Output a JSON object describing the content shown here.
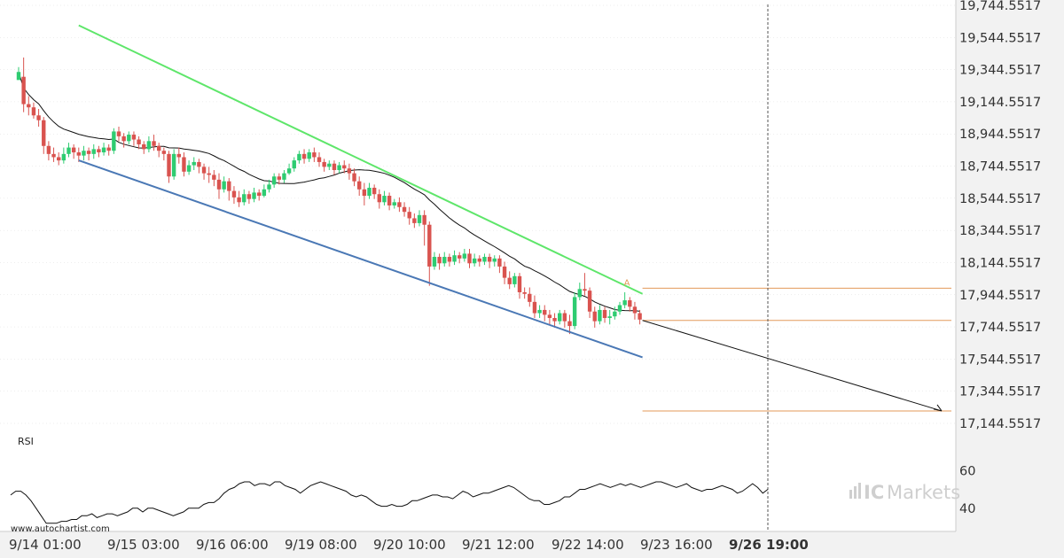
{
  "chart_data": {
    "type": "candlestick",
    "x_tick_labels": [
      "9/14 01:00",
      "9/15 03:00",
      "9/16 06:00",
      "9/19 08:00",
      "9/20 10:00",
      "9/21 12:00",
      "9/22 14:00",
      "9/23 16:00",
      "9/26 19:00"
    ],
    "y_tick_labels": [
      "19,744.5517",
      "19,544.5517",
      "19,344.5517",
      "19,144.5517",
      "18,944.5517",
      "18,744.5517",
      "18,544.5517",
      "18,344.5517",
      "18,144.5517",
      "17,944.5517",
      "17,744.5517",
      "17,544.5517",
      "17,344.5517",
      "17,144.5517"
    ],
    "y_ticks": [
      19744.5517,
      19544.5517,
      19344.5517,
      19144.5517,
      18944.5517,
      18744.5517,
      18544.5517,
      18344.5517,
      18144.5517,
      17944.5517,
      17744.5517,
      17544.5517,
      17344.5517,
      17144.5517
    ],
    "ylim": [
      17000,
      19744.5517
    ],
    "rsi": {
      "label": "RSI",
      "tick_labels": [
        "60",
        "40"
      ],
      "ticks": [
        60,
        40
      ],
      "ylim": [
        30,
        70
      ],
      "values": [
        47,
        49,
        49,
        47,
        44,
        40,
        36,
        32,
        32,
        32,
        33,
        33,
        34,
        34,
        36,
        36,
        37,
        35,
        36,
        37,
        37,
        36,
        37,
        38,
        40,
        40,
        38,
        40,
        40,
        39,
        38,
        37,
        36,
        37,
        38,
        40,
        40,
        40,
        42,
        43,
        43,
        45,
        48,
        50,
        51,
        53,
        54,
        54,
        52,
        53,
        53,
        52,
        54,
        54,
        52,
        51,
        50,
        48,
        50,
        52,
        53,
        54,
        53,
        52,
        51,
        50,
        49,
        47,
        46,
        47,
        46,
        44,
        42,
        41,
        41,
        42,
        41,
        41,
        42,
        44,
        44,
        45,
        46,
        47,
        47,
        46,
        46,
        45,
        47,
        49,
        48,
        46,
        47,
        48,
        48,
        49,
        50,
        51,
        52,
        51,
        49,
        47,
        45,
        44,
        44,
        42,
        42,
        43,
        44,
        46,
        46,
        48,
        50,
        50,
        51,
        52,
        53,
        52,
        51,
        52,
        53,
        52,
        53,
        52,
        51,
        52,
        53,
        54,
        54,
        53,
        52,
        51,
        52,
        53,
        51,
        50,
        49,
        50,
        50,
        51,
        52,
        51,
        50,
        48,
        49,
        51,
        53,
        51,
        48,
        50
      ]
    },
    "candles": [
      [
        19280,
        19330,
        19300,
        19360
      ],
      [
        19300,
        19130,
        19080,
        19420
      ],
      [
        19130,
        19110,
        19060,
        19180
      ],
      [
        19110,
        19060,
        19040,
        19140
      ],
      [
        19060,
        19030,
        18990,
        19100
      ],
      [
        19030,
        18870,
        18820,
        19050
      ],
      [
        18870,
        18820,
        18780,
        18900
      ],
      [
        18820,
        18800,
        18770,
        18860
      ],
      [
        18800,
        18780,
        18750,
        18830
      ],
      [
        18780,
        18820,
        18760,
        18860
      ],
      [
        18820,
        18860,
        18800,
        18890
      ],
      [
        18860,
        18830,
        18790,
        18880
      ],
      [
        18830,
        18810,
        18770,
        18860
      ],
      [
        18810,
        18840,
        18780,
        18870
      ],
      [
        18840,
        18820,
        18780,
        18860
      ],
      [
        18820,
        18850,
        18790,
        18880
      ],
      [
        18850,
        18830,
        18800,
        18870
      ],
      [
        18830,
        18860,
        18810,
        18890
      ],
      [
        18860,
        18840,
        18810,
        18880
      ],
      [
        18840,
        18960,
        18820,
        18980
      ],
      [
        18960,
        18930,
        18900,
        18990
      ],
      [
        18930,
        18900,
        18860,
        18950
      ],
      [
        18900,
        18940,
        18880,
        18960
      ],
      [
        18940,
        18910,
        18870,
        18960
      ],
      [
        18910,
        18880,
        18850,
        18930
      ],
      [
        18880,
        18850,
        18820,
        18900
      ],
      [
        18850,
        18900,
        18830,
        18930
      ],
      [
        18900,
        18870,
        18840,
        18940
      ],
      [
        18870,
        18840,
        18800,
        18890
      ],
      [
        18840,
        18820,
        18780,
        18860
      ],
      [
        18820,
        18680,
        18640,
        18840
      ],
      [
        18680,
        18820,
        18660,
        18850
      ],
      [
        18820,
        18800,
        18760,
        18860
      ],
      [
        18800,
        18710,
        18680,
        18830
      ],
      [
        18710,
        18750,
        18690,
        18780
      ],
      [
        18750,
        18770,
        18720,
        18800
      ],
      [
        18770,
        18740,
        18700,
        18790
      ],
      [
        18740,
        18700,
        18660,
        18760
      ],
      [
        18700,
        18690,
        18640,
        18740
      ],
      [
        18690,
        18660,
        18620,
        18720
      ],
      [
        18660,
        18600,
        18540,
        18700
      ],
      [
        18600,
        18650,
        18580,
        18680
      ],
      [
        18650,
        18590,
        18530,
        18670
      ],
      [
        18590,
        18550,
        18510,
        18620
      ],
      [
        18550,
        18520,
        18490,
        18590
      ],
      [
        18520,
        18570,
        18500,
        18600
      ],
      [
        18570,
        18540,
        18510,
        18590
      ],
      [
        18540,
        18580,
        18520,
        18610
      ],
      [
        18580,
        18560,
        18530,
        18600
      ],
      [
        18560,
        18600,
        18550,
        18630
      ],
      [
        18600,
        18630,
        18580,
        18660
      ],
      [
        18630,
        18680,
        18610,
        18700
      ],
      [
        18680,
        18660,
        18630,
        18700
      ],
      [
        18660,
        18700,
        18640,
        18720
      ],
      [
        18700,
        18730,
        18690,
        18760
      ],
      [
        18730,
        18780,
        18710,
        18800
      ],
      [
        18780,
        18820,
        18760,
        18840
      ],
      [
        18820,
        18790,
        18760,
        18850
      ],
      [
        18790,
        18830,
        18770,
        18850
      ],
      [
        18830,
        18800,
        18770,
        18860
      ],
      [
        18800,
        18770,
        18740,
        18830
      ],
      [
        18770,
        18740,
        18710,
        18790
      ],
      [
        18740,
        18760,
        18720,
        18780
      ],
      [
        18760,
        18720,
        18690,
        18780
      ],
      [
        18720,
        18750,
        18700,
        18770
      ],
      [
        18750,
        18730,
        18700,
        18780
      ],
      [
        18730,
        18700,
        18660,
        18760
      ],
      [
        18700,
        18650,
        18620,
        18730
      ],
      [
        18650,
        18600,
        18560,
        18680
      ],
      [
        18600,
        18560,
        18500,
        18640
      ],
      [
        18560,
        18610,
        18540,
        18640
      ],
      [
        18610,
        18570,
        18540,
        18630
      ],
      [
        18570,
        18520,
        18480,
        18600
      ],
      [
        18520,
        18560,
        18500,
        18590
      ],
      [
        18560,
        18500,
        18470,
        18580
      ],
      [
        18500,
        18520,
        18480,
        18540
      ],
      [
        18520,
        18490,
        18460,
        18550
      ],
      [
        18490,
        18460,
        18430,
        18520
      ],
      [
        18460,
        18420,
        18380,
        18490
      ],
      [
        18420,
        18390,
        18360,
        18450
      ],
      [
        18390,
        18440,
        18370,
        18470
      ],
      [
        18440,
        18380,
        18250,
        18470
      ],
      [
        18380,
        18120,
        18000,
        18400
      ],
      [
        18120,
        18180,
        18100,
        18210
      ],
      [
        18180,
        18140,
        18100,
        18200
      ],
      [
        18140,
        18180,
        18120,
        18210
      ],
      [
        18180,
        18150,
        18120,
        18200
      ],
      [
        18150,
        18190,
        18130,
        18220
      ],
      [
        18190,
        18170,
        18140,
        18210
      ],
      [
        18170,
        18200,
        18150,
        18230
      ],
      [
        18200,
        18140,
        18110,
        18230
      ],
      [
        18140,
        18170,
        18120,
        18200
      ],
      [
        18170,
        18150,
        18120,
        18190
      ],
      [
        18150,
        18180,
        18130,
        18200
      ],
      [
        18180,
        18150,
        18110,
        18200
      ],
      [
        18150,
        18170,
        18120,
        18190
      ],
      [
        18170,
        18120,
        18080,
        18190
      ],
      [
        18120,
        18050,
        18010,
        18150
      ],
      [
        18050,
        18010,
        17980,
        18090
      ],
      [
        18010,
        18060,
        17990,
        18080
      ],
      [
        18060,
        17960,
        17920,
        18080
      ],
      [
        17960,
        17950,
        17920,
        17990
      ],
      [
        17950,
        17900,
        17870,
        17990
      ],
      [
        17900,
        17830,
        17800,
        17940
      ],
      [
        17830,
        17850,
        17800,
        17880
      ],
      [
        17850,
        17820,
        17780,
        17880
      ],
      [
        17820,
        17800,
        17760,
        17850
      ],
      [
        17800,
        17780,
        17740,
        17830
      ],
      [
        17780,
        17830,
        17760,
        17850
      ],
      [
        17830,
        17780,
        17740,
        17850
      ],
      [
        17780,
        17750,
        17700,
        17820
      ],
      [
        17750,
        17930,
        17730,
        17960
      ],
      [
        17930,
        17980,
        17910,
        18020
      ],
      [
        17980,
        17970,
        17940,
        18080
      ],
      [
        17970,
        17840,
        17800,
        17990
      ],
      [
        17840,
        17780,
        17740,
        17870
      ],
      [
        17780,
        17850,
        17760,
        17880
      ],
      [
        17850,
        17800,
        17770,
        17870
      ],
      [
        17800,
        17810,
        17760,
        17850
      ],
      [
        17810,
        17840,
        17790,
        17870
      ],
      [
        17840,
        17880,
        17820,
        17900
      ],
      [
        17880,
        17910,
        17860,
        17960
      ],
      [
        17910,
        17870,
        17840,
        17930
      ],
      [
        17870,
        17830,
        17790,
        17900
      ],
      [
        17830,
        17790,
        17760,
        17850
      ]
    ],
    "pattern_label": "A"
  },
  "watermark": {
    "url": "www.autochartist.com"
  },
  "brand": {
    "ic": "IC",
    "markets": "Markets"
  },
  "colors": {
    "bull": "#2ecc71",
    "bear": "#d9534f",
    "upper_channel": "#5ee66a",
    "lower_channel": "#4a78b5",
    "level_lines": "#e39a5a",
    "moving_average": "#111111",
    "grid": "#dddddd",
    "axis_bg": "#f2f2f2"
  }
}
